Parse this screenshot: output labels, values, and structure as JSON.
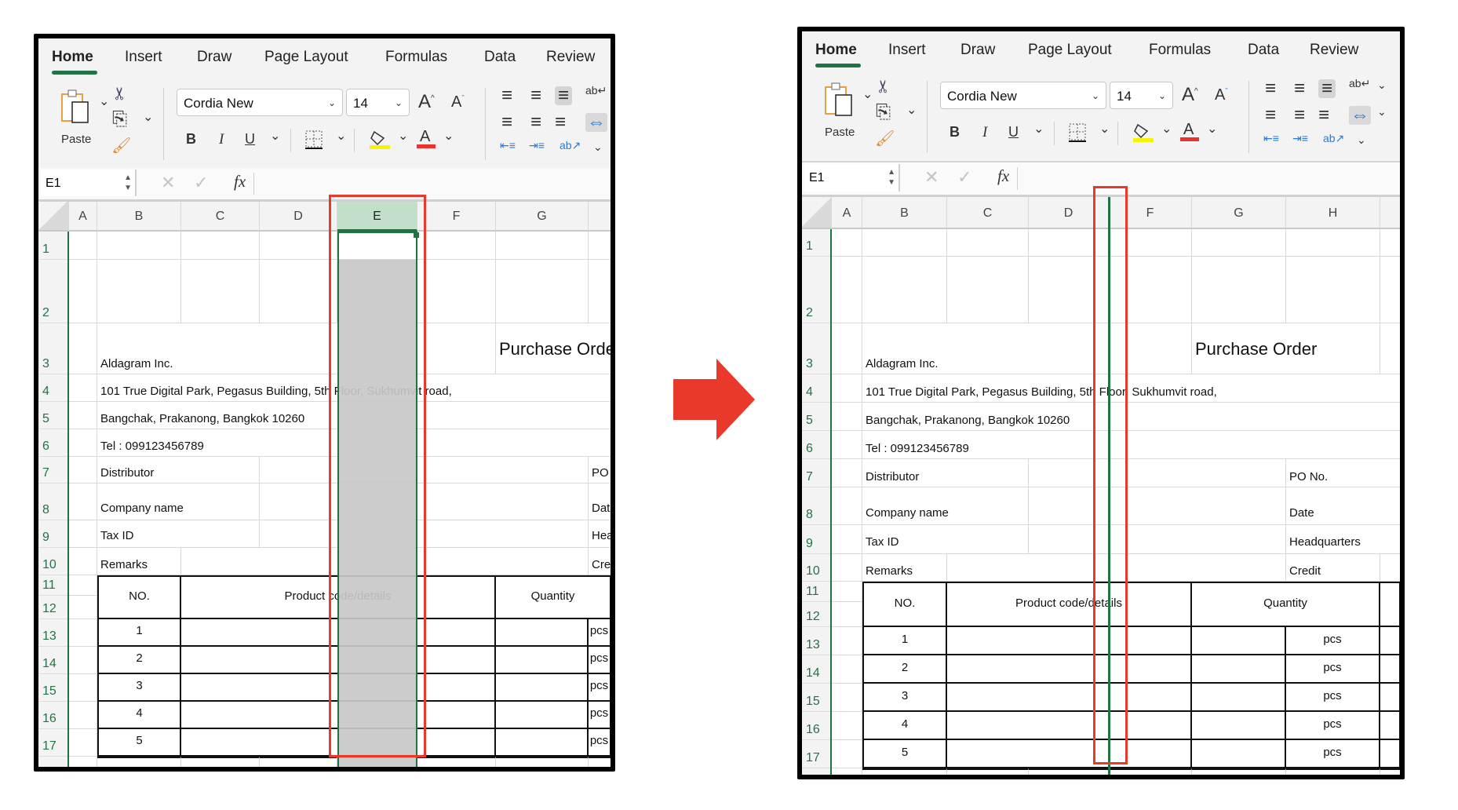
{
  "ribbon": {
    "tabs": [
      "Home",
      "Insert",
      "Draw",
      "Page Layout",
      "Formulas",
      "Data",
      "Review"
    ],
    "active_tab": "Home",
    "paste_label": "Paste",
    "font_name": "Cordia New",
    "font_size": "14",
    "bold_label": "B",
    "italic_label": "I",
    "underline_label": "U",
    "fill_color": "#f5f500",
    "font_color": "#e8342a"
  },
  "formula_bar": {
    "name_box": "E1",
    "fx_label": "fx",
    "value": ""
  },
  "sheet": {
    "row_numbers": [
      "1",
      "2",
      "3",
      "4",
      "5",
      "6",
      "7",
      "8",
      "9",
      "10",
      "11",
      "12",
      "13",
      "14",
      "15",
      "16",
      "17"
    ],
    "cells": [
      {
        "ref": "B3",
        "text": "Aldagram Inc."
      },
      {
        "ref": "G3",
        "text": "Purchase Order"
      },
      {
        "ref": "B4",
        "text": "101 True Digital Park, Pegasus Building, 5th Floor, Sukhumvit road,"
      },
      {
        "ref": "B5",
        "text": "Bangchak, Prakanong, Bangkok 10260"
      },
      {
        "ref": "B6",
        "text": "Tel : 099123456789"
      },
      {
        "ref": "B7",
        "text": "Distributor"
      },
      {
        "ref": "H7",
        "text": "PO No."
      },
      {
        "ref": "B8",
        "text": "Company name"
      },
      {
        "ref": "H8",
        "text": "Date"
      },
      {
        "ref": "B9",
        "text": "Tax ID"
      },
      {
        "ref": "H9",
        "text": "Headquarters"
      },
      {
        "ref": "B10",
        "text": "Remarks"
      },
      {
        "ref": "H10",
        "text": "Credit"
      },
      {
        "ref": "B11",
        "text": "NO."
      },
      {
        "ref": "C11",
        "text": "Product code/details"
      },
      {
        "ref": "G11",
        "text": "Quantity"
      },
      {
        "ref": "B13",
        "text": "1"
      },
      {
        "ref": "H13",
        "text": "pcs"
      },
      {
        "ref": "B14",
        "text": "2"
      },
      {
        "ref": "H14",
        "text": "pcs"
      },
      {
        "ref": "B15",
        "text": "3"
      },
      {
        "ref": "H15",
        "text": "pcs"
      },
      {
        "ref": "B16",
        "text": "4"
      },
      {
        "ref": "H16",
        "text": "pcs"
      },
      {
        "ref": "B17",
        "text": "5"
      },
      {
        "ref": "H17",
        "text": "pcs"
      }
    ],
    "merges": [
      "B3:F3",
      "G3:H3",
      "B4:I4",
      "B5:I5",
      "B6:I6",
      "B7:C7",
      "D7:G7",
      "H7:I7",
      "B8:C8",
      "D8:G8",
      "H8:I8",
      "B9:C9",
      "D9:G9",
      "H9:I9",
      "C10:G10",
      "B11:B12",
      "C11:F12",
      "G11:H12",
      "I11:I12",
      "C13:F13",
      "C14:F14",
      "C15:F15",
      "C16:F16",
      "C17:F17"
    ]
  },
  "panels": [
    {
      "name": "before",
      "column_letters": [
        "A",
        "B",
        "C",
        "D",
        "E",
        "F",
        "G"
      ],
      "hidden_columns": [],
      "selected_column": "E",
      "active_cell": "E1"
    },
    {
      "name": "after",
      "column_letters": [
        "A",
        "B",
        "C",
        "D",
        "F",
        "G",
        "H"
      ],
      "hidden_columns": [
        "E"
      ],
      "active_cell": "E1"
    }
  ],
  "colors": {
    "accent": "#217346",
    "annotation": "#e8392a",
    "selection_fill": "#c8c8c8",
    "selected_header": "#c3dfca"
  }
}
